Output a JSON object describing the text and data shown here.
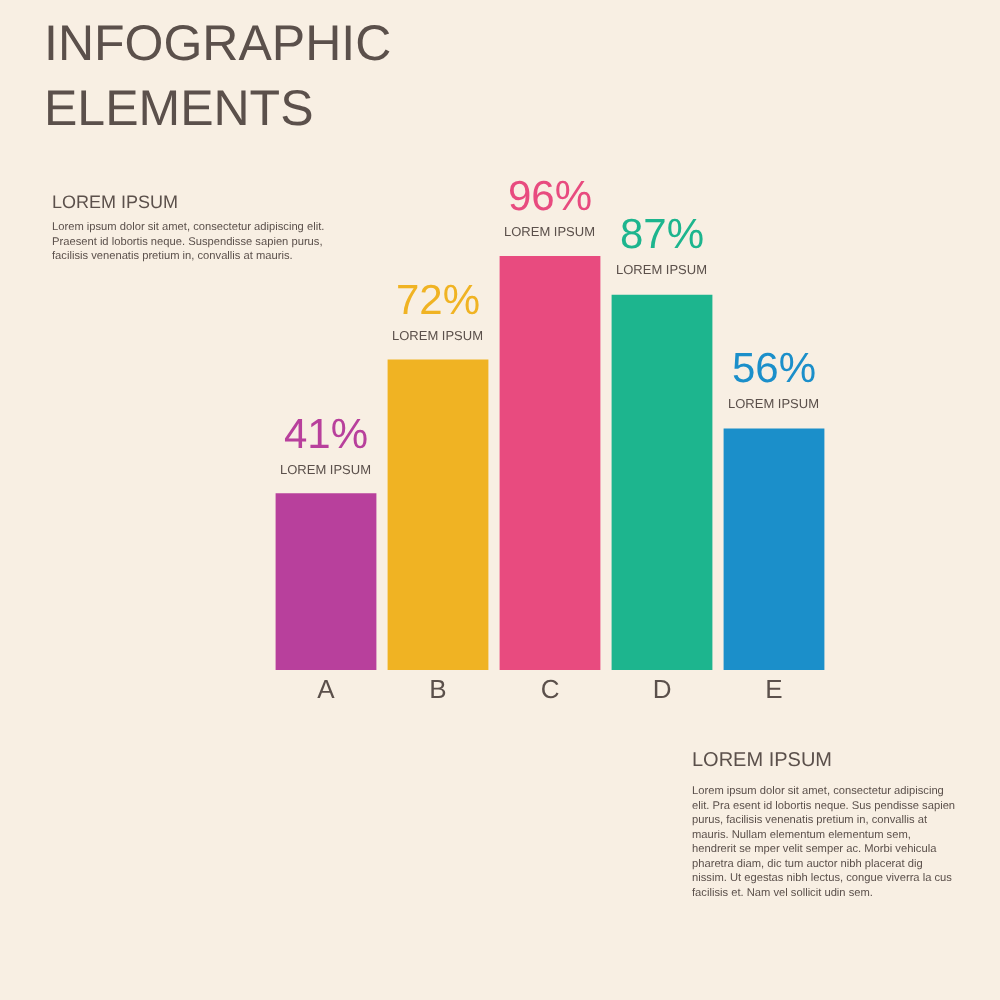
{
  "chart_data": {
    "type": "bar",
    "title": "INFOGRAPHIC\nELEMENTS",
    "subtitle": "LOREM IPSUM",
    "categories": [
      "A",
      "B",
      "C",
      "D",
      "E"
    ],
    "values": [
      41,
      72,
      96,
      87,
      56
    ],
    "colors": [
      "#b8409c",
      "#f0b323",
      "#e84b7f",
      "#1db58e",
      "#1b8fca"
    ],
    "value_labels": [
      "41%",
      "72%",
      "96%",
      "87%",
      "56%"
    ],
    "annotations": [
      "Lorem ipsum dolor sit amet, consectetur adipiscing elit.\nPraesent id lobortis neque. Suspendisse sapien purus,\nfacilisis venenatis pretium in, convallis at mauris.",
      "LOREM IPSUM",
      "Lorem ipsum dolor sit amet, consectetur adipiscing\nelit. Pra esent id lobortis neque. Sus pendisse sapien\npurus, facilisis venenatis pretium in, convallis at\nmauris. Nullam elementum elementum sem,\nhendrerit se mper velit semper ac. Morbi vehicula\npharetra diam, dic tum auctor nibh placerat dig\nnissim. Ut egestas nibh lectus, congue viverra la cus\nfacilisis et. Nam vel sollicit udin sem.",
      {
        "text": "LOREM IPSUM",
        "x": "A",
        "y": 41
      },
      {
        "text": "LOREM IPSUM",
        "x": "B",
        "y": 72
      },
      {
        "text": "LOREM IPSUM",
        "x": "C",
        "y": 96
      },
      {
        "text": "LOREM IPSUM",
        "x": "D",
        "y": 87
      },
      {
        "text": "LOREM IPSUM",
        "x": "E",
        "y": 56
      }
    ],
    "tick_labels": "x"
  }
}
